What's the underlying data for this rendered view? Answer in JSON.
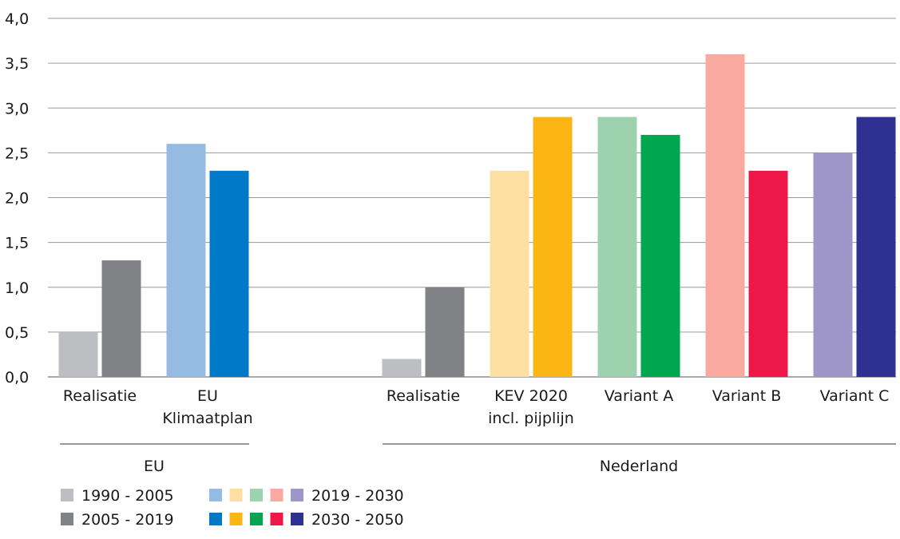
{
  "chart_data": {
    "type": "bar",
    "ylim": [
      0,
      4.0
    ],
    "grid": true,
    "y_ticks": [
      "0,0",
      "0,5",
      "1,0",
      "1,5",
      "2,0",
      "2,5",
      "3,0",
      "3,5",
      "4,0"
    ],
    "groups": [
      {
        "label": "EU",
        "categories": [
          "a",
          "b"
        ]
      },
      {
        "label": "Nederland",
        "categories": [
          "c",
          "d",
          "e",
          "f",
          "g"
        ]
      }
    ],
    "categories": [
      {
        "id": "a",
        "label_lines": [
          "Realisatie"
        ],
        "bars": [
          {
            "value": 0.5,
            "color": "#bdbec1"
          },
          {
            "value": 1.3,
            "color": "#808285"
          }
        ]
      },
      {
        "id": "b",
        "label_lines": [
          "EU",
          "Klimaatplan"
        ],
        "bars": [
          {
            "value": 2.6,
            "color": "#95bbe3"
          },
          {
            "value": 2.3,
            "color": "#0079c8"
          }
        ]
      },
      {
        "id": "c",
        "label_lines": [
          "Realisatie"
        ],
        "bars": [
          {
            "value": 0.2,
            "color": "#bdbec1"
          },
          {
            "value": 1.0,
            "color": "#808285"
          }
        ]
      },
      {
        "id": "d",
        "label_lines": [
          "KEV 2020",
          "incl. pijplijn"
        ],
        "bars": [
          {
            "value": 2.3,
            "color": "#fde0a1"
          },
          {
            "value": 2.9,
            "color": "#fbb616"
          }
        ]
      },
      {
        "id": "e",
        "label_lines": [
          "Variant A"
        ],
        "bars": [
          {
            "value": 2.9,
            "color": "#9cd3ae"
          },
          {
            "value": 2.7,
            "color": "#00a650"
          }
        ]
      },
      {
        "id": "f",
        "label_lines": [
          "Variant B"
        ],
        "bars": [
          {
            "value": 3.6,
            "color": "#f9a99f"
          },
          {
            "value": 2.3,
            "color": "#ee1848"
          }
        ]
      },
      {
        "id": "g",
        "label_lines": [
          "Variant C"
        ],
        "bars": [
          {
            "value": 2.5,
            "color": "#9e95c9"
          },
          {
            "value": 2.9,
            "color": "#2e3192"
          }
        ]
      }
    ],
    "legend": [
      {
        "label": "1990 - 2005",
        "colors": [
          "#bdbec1"
        ]
      },
      {
        "label": "2005 - 2019",
        "colors": [
          "#808285"
        ]
      },
      {
        "label": "2019 - 2030",
        "colors": [
          "#95bbe3",
          "#fde0a1",
          "#9cd3ae",
          "#f9a99f",
          "#9e95c9"
        ]
      },
      {
        "label": "2030 - 2050",
        "colors": [
          "#0079c8",
          "#fbb616",
          "#00a650",
          "#ee1848",
          "#2e3192"
        ]
      }
    ],
    "legend_placement": "bottom-left"
  }
}
